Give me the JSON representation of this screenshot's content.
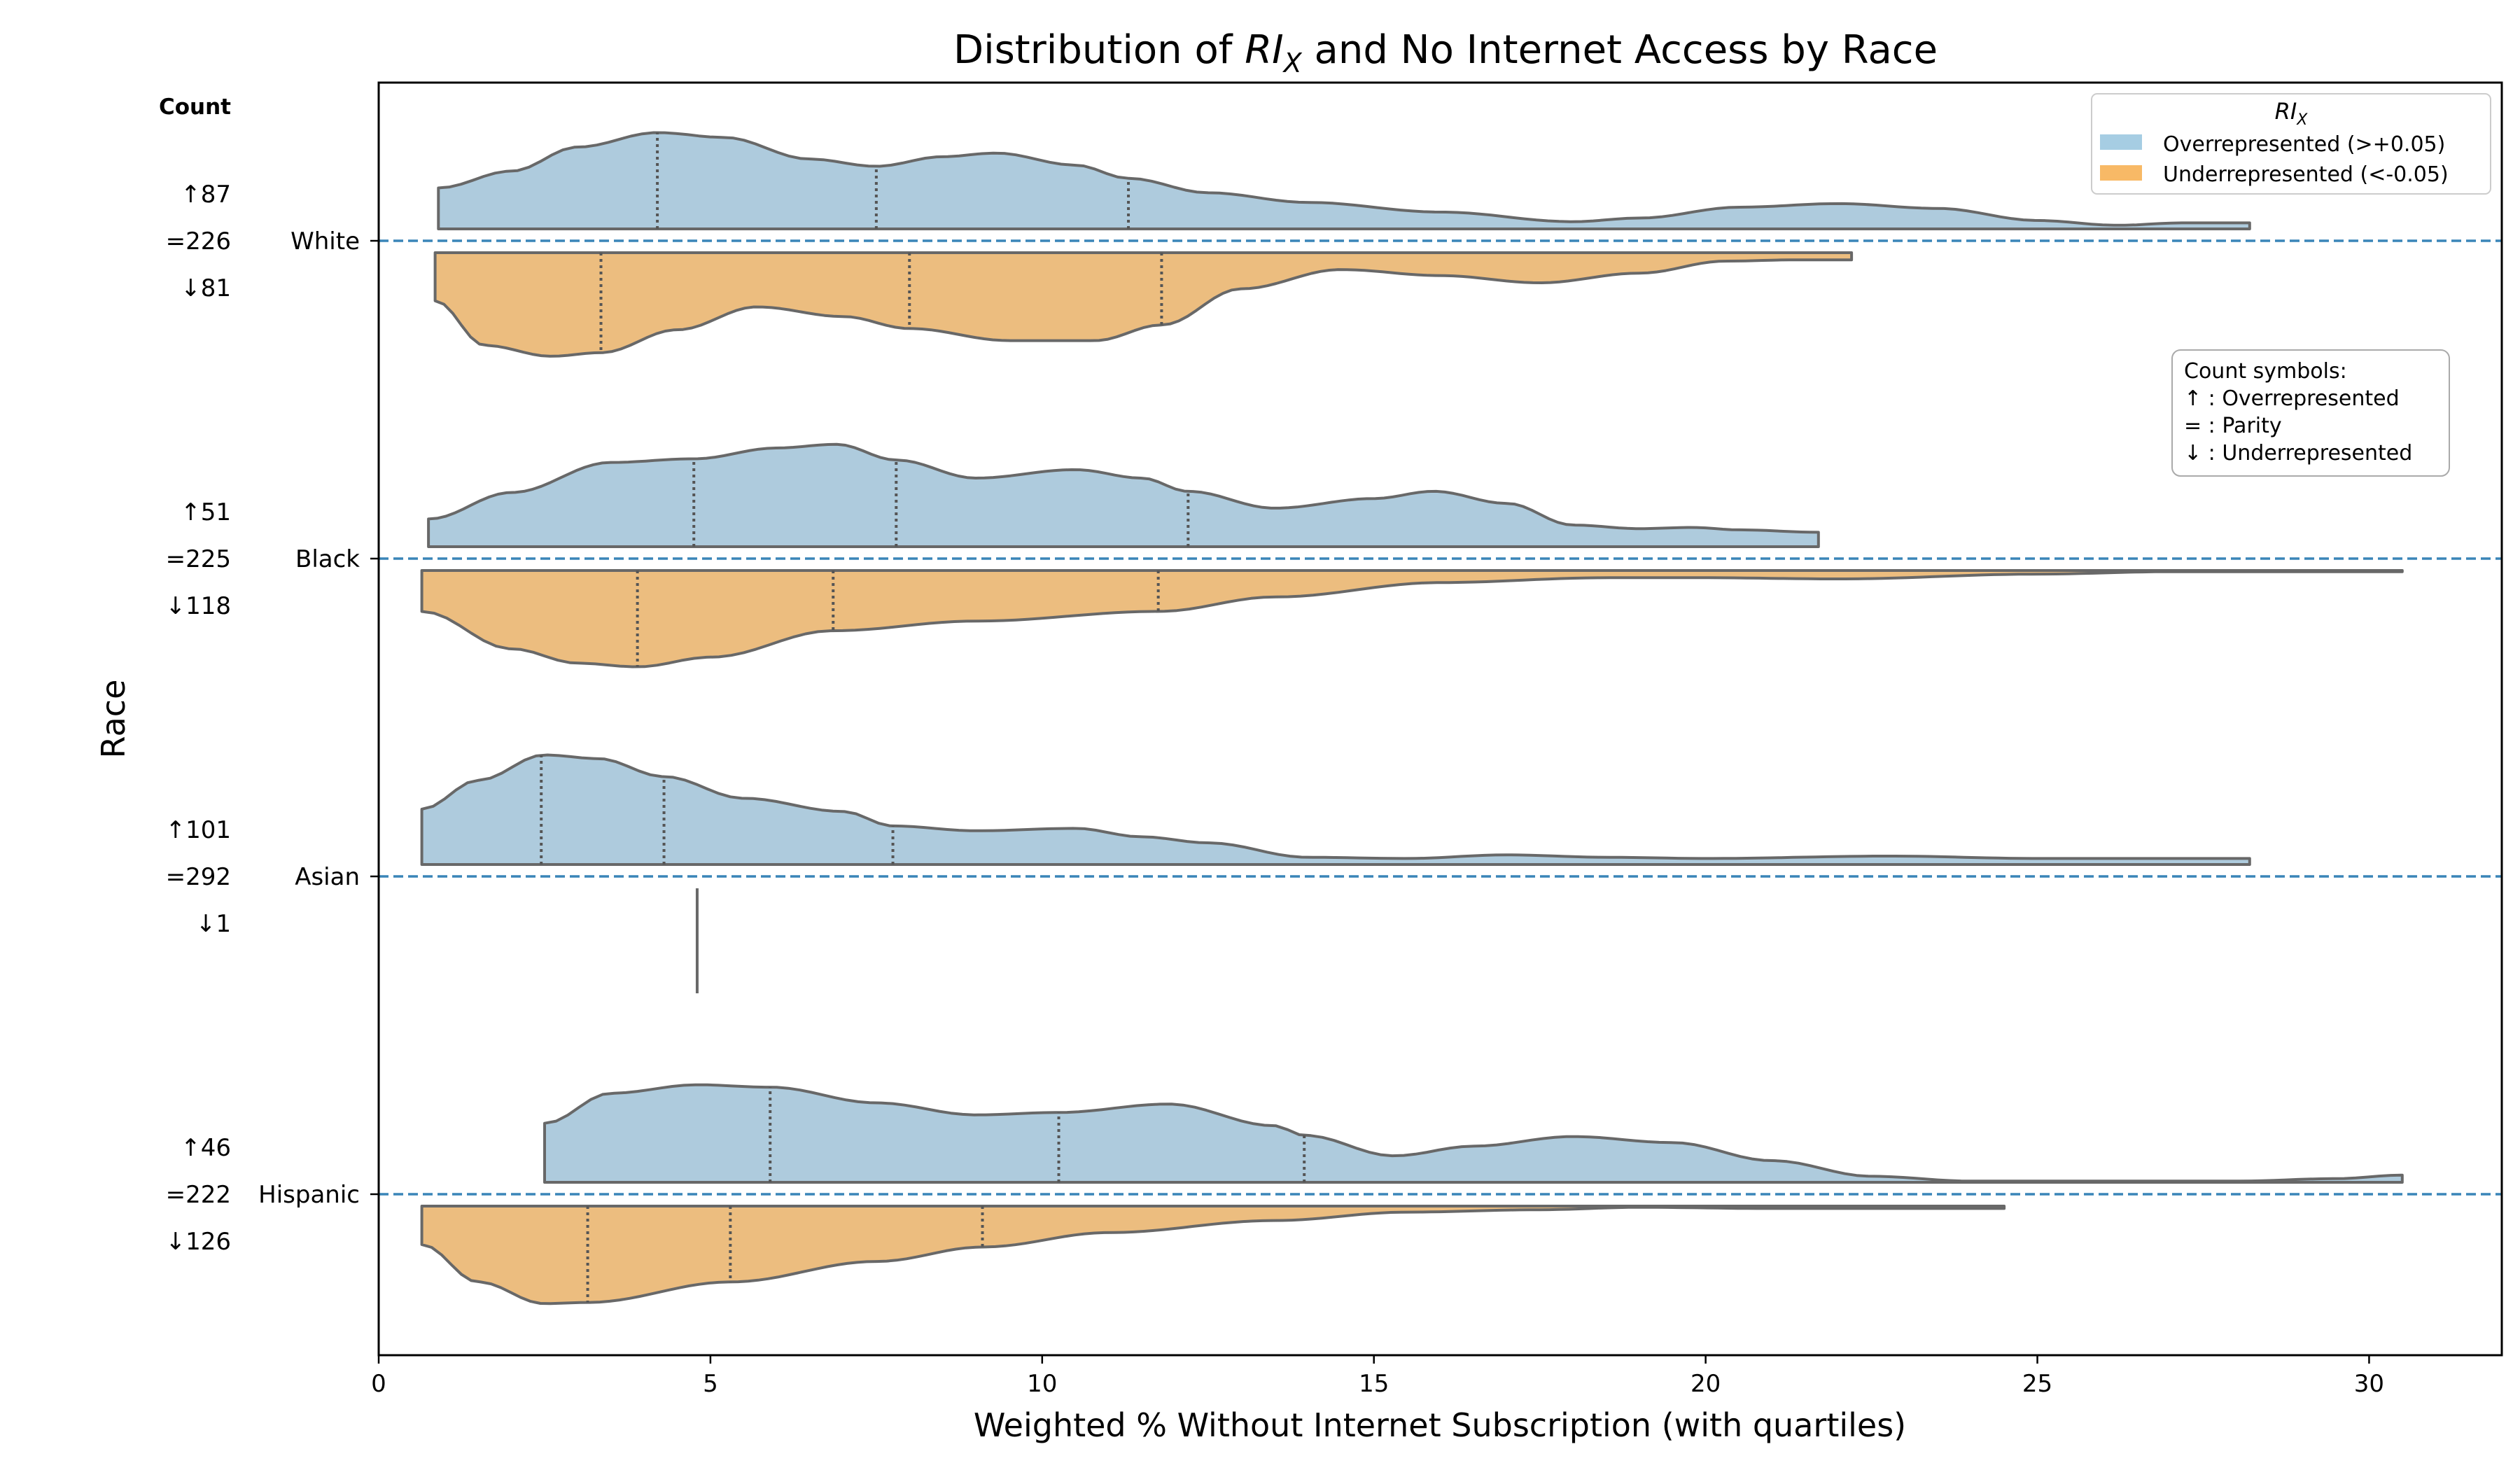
{
  "chart_data": {
    "type": "violin",
    "title_prefix": "Distribution of ",
    "title_math": "RI",
    "title_math_sub": "X",
    "title_suffix": " and No Internet Access by Race",
    "xlabel": "Weighted % Without Internet Subscription (with quartiles)",
    "ylabel": "Race",
    "xlim": [
      0,
      32
    ],
    "xticks": [
      0,
      5,
      10,
      15,
      20,
      25,
      30
    ],
    "count_header": "Count",
    "legend": {
      "title_math": "RI",
      "title_math_sub": "X",
      "placement": "top-right",
      "entries": [
        {
          "label": "Overrepresented (>+0.05)",
          "color": "#a6cde3"
        },
        {
          "label": "Underrepresented (<-0.05)",
          "color": "#f8b966"
        }
      ]
    },
    "symbols_box": {
      "title": "Count symbols:",
      "lines": [
        "↑ : Overrepresented",
        "= : Parity",
        "↓ : Underrepresented"
      ]
    },
    "colors": {
      "over": "#aecbdd",
      "under": "#ecbd7f",
      "outline": "#686868",
      "baseline": "#3a85b8"
    },
    "groups": [
      {
        "name": "White",
        "counts": [
          "↑87",
          "=226",
          "↓81"
        ],
        "over": {
          "range": [
            0.9,
            28.2
          ],
          "quartiles": [
            4.2,
            7.5,
            11.3
          ],
          "density": [
            [
              0.9,
              0.34
            ],
            [
              2,
              0.48
            ],
            [
              3,
              0.68
            ],
            [
              4.2,
              0.8
            ],
            [
              5.2,
              0.76
            ],
            [
              6.5,
              0.58
            ],
            [
              7.5,
              0.52
            ],
            [
              8.5,
              0.6
            ],
            [
              9.3,
              0.63
            ],
            [
              10.5,
              0.53
            ],
            [
              11.3,
              0.42
            ],
            [
              12.5,
              0.3
            ],
            [
              14,
              0.22
            ],
            [
              16,
              0.14
            ],
            [
              18,
              0.06
            ],
            [
              19,
              0.09
            ],
            [
              20.5,
              0.18
            ],
            [
              22,
              0.21
            ],
            [
              23.5,
              0.17
            ],
            [
              25,
              0.07
            ],
            [
              26.2,
              0.03
            ],
            [
              27.2,
              0.05
            ],
            [
              28.2,
              0.05
            ]
          ]
        },
        "under": {
          "range": [
            0.85,
            22.2
          ],
          "quartiles": [
            3.35,
            8.0,
            11.8
          ],
          "density": [
            [
              0.85,
              0.4
            ],
            [
              1.6,
              0.77
            ],
            [
              2.6,
              0.86
            ],
            [
              3.35,
              0.83
            ],
            [
              4.5,
              0.64
            ],
            [
              5.7,
              0.45
            ],
            [
              7,
              0.53
            ],
            [
              8,
              0.63
            ],
            [
              9.5,
              0.73
            ],
            [
              10.8,
              0.73
            ],
            [
              11.8,
              0.6
            ],
            [
              13,
              0.3
            ],
            [
              14.5,
              0.14
            ],
            [
              16,
              0.19
            ],
            [
              17.5,
              0.25
            ],
            [
              19,
              0.17
            ],
            [
              20.3,
              0.07
            ],
            [
              21.3,
              0.06
            ],
            [
              22.2,
              0.06
            ]
          ]
        }
      },
      {
        "name": "Black",
        "counts": [
          "↑51",
          "=225",
          "↓118"
        ],
        "over": {
          "range": [
            0.75,
            21.7
          ],
          "quartiles": [
            4.75,
            7.8,
            12.2
          ],
          "density": [
            [
              0.75,
              0.23
            ],
            [
              2,
              0.45
            ],
            [
              3.5,
              0.7
            ],
            [
              4.75,
              0.73
            ],
            [
              6,
              0.82
            ],
            [
              6.9,
              0.85
            ],
            [
              7.8,
              0.72
            ],
            [
              9,
              0.57
            ],
            [
              10.5,
              0.64
            ],
            [
              11.5,
              0.57
            ],
            [
              12.2,
              0.46
            ],
            [
              13.5,
              0.32
            ],
            [
              15,
              0.4
            ],
            [
              15.9,
              0.46
            ],
            [
              17,
              0.36
            ],
            [
              18,
              0.18
            ],
            [
              19,
              0.15
            ],
            [
              19.8,
              0.16
            ],
            [
              20.5,
              0.14
            ],
            [
              21.7,
              0.12
            ]
          ]
        },
        "under": {
          "range": [
            0.65,
            30.5
          ],
          "quartiles": [
            3.9,
            6.85,
            11.75
          ],
          "density": [
            [
              0.65,
              0.34
            ],
            [
              2,
              0.65
            ],
            [
              3,
              0.77
            ],
            [
              3.9,
              0.8
            ],
            [
              5,
              0.72
            ],
            [
              6.85,
              0.5
            ],
            [
              9,
              0.42
            ],
            [
              11.75,
              0.34
            ],
            [
              13.5,
              0.22
            ],
            [
              16,
              0.1
            ],
            [
              18.5,
              0.06
            ],
            [
              20,
              0.06
            ],
            [
              22,
              0.07
            ],
            [
              25,
              0.03
            ],
            [
              27,
              0.01
            ],
            [
              30.5,
              0.01
            ]
          ]
        }
      },
      {
        "name": "Asian",
        "counts": [
          "↑101",
          "=292",
          "↓1"
        ],
        "over": {
          "range": [
            0.65,
            28.2
          ],
          "quartiles": [
            2.45,
            4.3,
            7.75
          ],
          "density": [
            [
              0.65,
              0.46
            ],
            [
              1.5,
              0.7
            ],
            [
              2.5,
              0.91
            ],
            [
              3.3,
              0.88
            ],
            [
              4.3,
              0.73
            ],
            [
              5.5,
              0.55
            ],
            [
              7,
              0.44
            ],
            [
              7.75,
              0.32
            ],
            [
              9,
              0.28
            ],
            [
              10.5,
              0.3
            ],
            [
              11.5,
              0.23
            ],
            [
              12.5,
              0.18
            ],
            [
              14,
              0.06
            ],
            [
              15.5,
              0.05
            ],
            [
              17,
              0.08
            ],
            [
              18.5,
              0.06
            ],
            [
              20,
              0.05
            ],
            [
              22.8,
              0.07
            ],
            [
              25,
              0.05
            ],
            [
              28.2,
              0.05
            ]
          ]
        },
        "under": {
          "single": 4.8
        }
      },
      {
        "name": "Hispanic",
        "counts": [
          "↑46",
          "=222",
          "↓126"
        ],
        "over": {
          "range": [
            2.5,
            30.5
          ],
          "quartiles": [
            5.9,
            10.25,
            13.95
          ],
          "density": [
            [
              2.5,
              0.49
            ],
            [
              3.5,
              0.74
            ],
            [
              4.8,
              0.81
            ],
            [
              5.9,
              0.79
            ],
            [
              7.5,
              0.66
            ],
            [
              9,
              0.56
            ],
            [
              10.25,
              0.58
            ],
            [
              11.9,
              0.65
            ],
            [
              13.5,
              0.47
            ],
            [
              13.95,
              0.39
            ],
            [
              15.3,
              0.22
            ],
            [
              16.5,
              0.3
            ],
            [
              18,
              0.38
            ],
            [
              19.5,
              0.33
            ],
            [
              21,
              0.18
            ],
            [
              22.5,
              0.05
            ],
            [
              24,
              0.01
            ],
            [
              28,
              0.01
            ],
            [
              29.5,
              0.03
            ],
            [
              30.5,
              0.06
            ]
          ]
        },
        "under": {
          "range": [
            0.65,
            24.5
          ],
          "quartiles": [
            3.15,
            5.3,
            9.1
          ],
          "density": [
            [
              0.65,
              0.32
            ],
            [
              1.5,
              0.63
            ],
            [
              2.5,
              0.81
            ],
            [
              3.15,
              0.8
            ],
            [
              5.3,
              0.63
            ],
            [
              7.5,
              0.46
            ],
            [
              9.1,
              0.34
            ],
            [
              11,
              0.22
            ],
            [
              13.5,
              0.12
            ],
            [
              15.5,
              0.05
            ],
            [
              17.5,
              0.03
            ],
            [
              19,
              0.01
            ],
            [
              21,
              0.02
            ],
            [
              24.5,
              0.02
            ]
          ]
        }
      }
    ]
  }
}
